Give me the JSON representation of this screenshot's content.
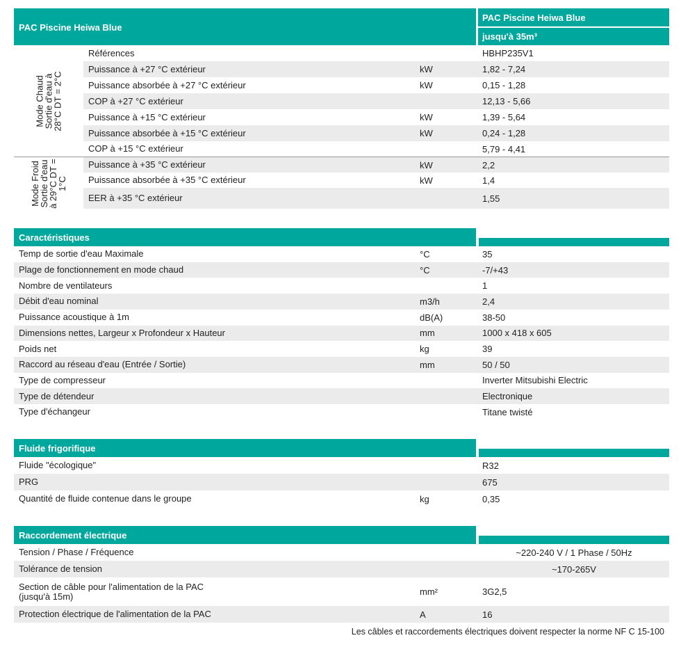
{
  "header": {
    "title": "PAC Piscine Heiwa Blue",
    "col_title": "PAC Piscine Heiwa Blue",
    "col_sub": "jusqu'à 35m³"
  },
  "groups": {
    "hot": "Mode Chaud\nSortie d'eau à\n28°C DT = 2°C",
    "cold": "Mode Froid\nSortie d'eau\nà 29°C DT =\n1°C"
  },
  "perf_rows": [
    {
      "label": "Références",
      "unit": "",
      "value": "HBHP235V1"
    },
    {
      "label": "Puissance à +27 °C extérieur",
      "unit": "kW",
      "value": "1,82 - 7,24"
    },
    {
      "label": "Puissance absorbée à +27 °C extérieur",
      "unit": "kW",
      "value": "0,15 - 1,28"
    },
    {
      "label": "COP à +27 °C extérieur",
      "unit": "",
      "value": "12,13 - 5,66"
    },
    {
      "label": "Puissance à +15 °C extérieur",
      "unit": "kW",
      "value": "1,39 - 5,64"
    },
    {
      "label": "Puissance absorbée à +15 °C extérieur",
      "unit": "kW",
      "value": "0,24 - 1,28"
    },
    {
      "label": "COP à +15 °C extérieur",
      "unit": "",
      "value": "5,79 - 4,41"
    },
    {
      "label": "Puissance à +35 °C extérieur",
      "unit": "kW",
      "value": "2,2"
    },
    {
      "label": "Puissance absorbée à +35 °C extérieur",
      "unit": "kW",
      "value": "1,4"
    },
    {
      "label": "EER à +35 °C extérieur",
      "unit": "",
      "value": "1,55"
    }
  ],
  "sections": [
    {
      "title": "Caractéristiques",
      "rows": [
        {
          "label": "Temp de sortie d'eau Maximale",
          "unit": "°C",
          "value": "35"
        },
        {
          "label": "Plage de fonctionnement en mode chaud",
          "unit": "°C",
          "value": "-7/+43"
        },
        {
          "label": "Nombre de ventilateurs",
          "unit": "",
          "value": "1"
        },
        {
          "label": "Débit d'eau nominal",
          "unit": "m3/h",
          "value": "2,4"
        },
        {
          "label": "Puissance acoustique à 1m",
          "unit": "dB(A)",
          "value": "38-50"
        },
        {
          "label": "Dimensions nettes, Largeur x Profondeur x Hauteur",
          "unit": "mm",
          "value": "1000 x 418 x 605"
        },
        {
          "label": "Poids net",
          "unit": "kg",
          "value": "39"
        },
        {
          "label": "Raccord au réseau d'eau (Entrée / Sortie)",
          "unit": "mm",
          "value": "50 / 50"
        },
        {
          "label": "Type de compresseur",
          "unit": "",
          "value": "Inverter Mitsubishi Electric"
        },
        {
          "label": "Type de détendeur",
          "unit": "",
          "value": "Electronique"
        },
        {
          "label": "Type d'échangeur",
          "unit": "",
          "value": "Titane twisté"
        }
      ]
    },
    {
      "title": "Fluide frigorifique",
      "rows": [
        {
          "label": "Fluide \"écologique\"",
          "unit": "",
          "value": "R32"
        },
        {
          "label": "PRG",
          "unit": "",
          "value": "675"
        },
        {
          "label": "Quantité de fluide contenue dans le groupe",
          "unit": "kg",
          "value": "0,35"
        }
      ]
    },
    {
      "title": "Raccordement électrique",
      "rows": [
        {
          "label": "Tension / Phase / Fréquence",
          "unit": "",
          "value": "~220-240 V / 1 Phase / 50Hz",
          "center": true
        },
        {
          "label": "Tolérance de tension",
          "unit": "",
          "value": "~170-265V",
          "center": true
        },
        {
          "label": "Section de câble pour l'alimentation de la PAC\n(jusqu'à 15m)",
          "unit": "mm²",
          "value": "3G2,5"
        },
        {
          "label": "Protection électrique de l'alimentation de la PAC",
          "unit": "A",
          "value": "16"
        }
      ]
    }
  ],
  "footer": "Les câbles et raccordements électriques doivent respecter la norme NF C 15-100",
  "colors": {
    "accent": "#00a79d",
    "stripe": "#ebebeb"
  }
}
